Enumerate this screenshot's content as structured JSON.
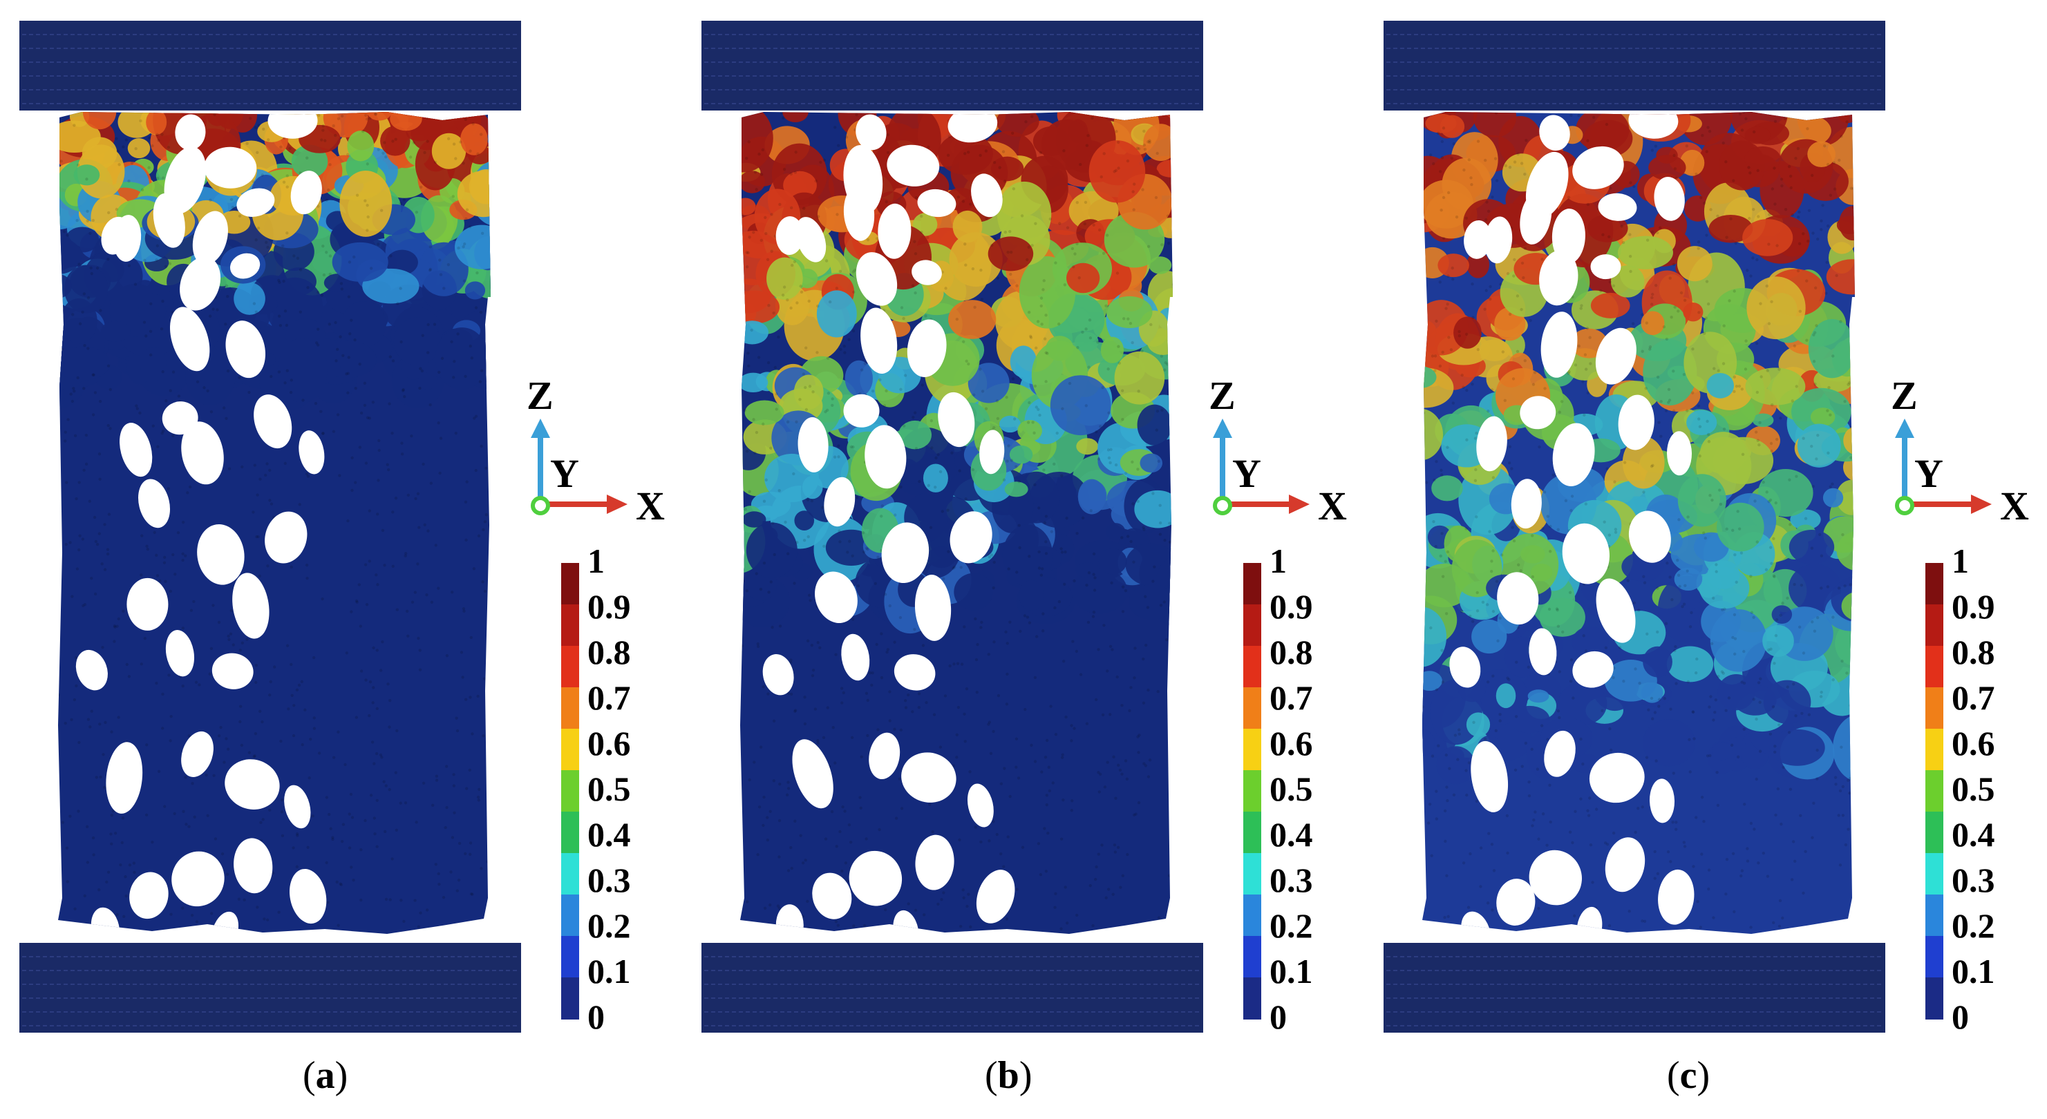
{
  "panels": [
    {
      "label": "a",
      "colors": [
        "#142a7c",
        "#142a7c",
        "#142a7c",
        "#1e4aa8",
        "#2f8fd1",
        "#46b86a",
        "#7cc640",
        "#e0b22a",
        "#e0571e",
        "#a21c12"
      ],
      "top_fraction": 0.28
    },
    {
      "label": "b",
      "colors": [
        "#142a7c",
        "#2a61b8",
        "#35a9cf",
        "#45b575",
        "#70c04a",
        "#a9c23b",
        "#d8ae2c",
        "#e17322",
        "#d23a1b",
        "#9c1a12"
      ],
      "top_fraction": 0.55
    },
    {
      "label": "c",
      "colors": [
        "#1d3a98",
        "#2f7ec9",
        "#36b0c7",
        "#45b57a",
        "#6fbf4a",
        "#9fc23f",
        "#d6b030",
        "#e17d24",
        "#d2401c",
        "#9e1b13"
      ],
      "top_fraction": 0.75
    }
  ],
  "axes": {
    "z": "Z",
    "y": "Y",
    "x": "X"
  },
  "colorbar": {
    "ticks": [
      "1",
      "0.9",
      "0.8",
      "0.7",
      "0.6",
      "0.5",
      "0.4",
      "0.3",
      "0.2",
      "0.1",
      "0"
    ],
    "colors": [
      "#7e0f0f",
      "#b51b14",
      "#e2301a",
      "#f07f18",
      "#f7d014",
      "#6ccf2d",
      "#2dbf57",
      "#2ee0d6",
      "#2a86dc",
      "#1f3fd0",
      "#1b2b86"
    ]
  },
  "theme": {
    "platen": "#1a2a66",
    "hole": "#ffffff"
  }
}
